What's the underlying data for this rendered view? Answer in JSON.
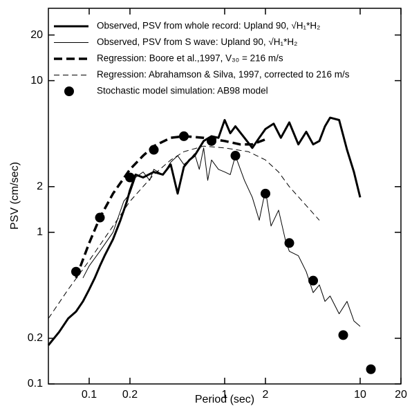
{
  "chart_data": {
    "type": "line",
    "xlabel": "Period (sec)",
    "ylabel": "PSV (cm/sec)",
    "log_x": true,
    "log_y": true,
    "xlim": [
      0.05,
      20
    ],
    "ylim": [
      0.1,
      30
    ],
    "xticks": [
      0.1,
      0.2,
      1,
      2,
      10,
      20
    ],
    "yticks": [
      0.1,
      0.2,
      1,
      2,
      10,
      20
    ],
    "legend": "upper left",
    "series": [
      {
        "name": "Observed, PSV from whole record: Upland 90, √H₁*H₂",
        "color": "#000000",
        "style": "solid",
        "width": 3,
        "x": [
          0.05,
          0.06,
          0.07,
          0.08,
          0.09,
          0.1,
          0.11,
          0.12,
          0.13,
          0.15,
          0.17,
          0.19,
          0.2,
          0.22,
          0.25,
          0.3,
          0.35,
          0.4,
          0.45,
          0.5,
          0.55,
          0.6,
          0.7,
          0.8,
          0.9,
          1.0,
          1.1,
          1.2,
          1.4,
          1.6,
          1.8,
          2.0,
          2.3,
          2.6,
          3.0,
          3.5,
          4.0,
          4.5,
          5.0,
          5.5,
          6.0,
          7.0,
          8.0,
          9.0,
          10
        ],
        "values": [
          0.18,
          0.22,
          0.27,
          0.3,
          0.35,
          0.42,
          0.5,
          0.6,
          0.7,
          0.9,
          1.2,
          1.6,
          1.9,
          2.4,
          2.3,
          2.5,
          2.4,
          2.8,
          1.8,
          2.7,
          3.0,
          3.2,
          4.0,
          4.3,
          4.2,
          5.5,
          4.5,
          5.0,
          4.2,
          3.6,
          4.2,
          4.8,
          5.2,
          4.2,
          5.3,
          3.8,
          4.6,
          3.8,
          4.0,
          5.0,
          5.7,
          5.5,
          3.5,
          2.5,
          1.7
        ]
      },
      {
        "name": "Observed, PSV from S wave: Upland 90, √H₁*H₂",
        "color": "#000000",
        "style": "solid",
        "width": 1,
        "x": [
          0.09,
          0.1,
          0.12,
          0.15,
          0.18,
          0.2,
          0.22,
          0.25,
          0.28,
          0.3,
          0.35,
          0.4,
          0.45,
          0.5,
          0.55,
          0.6,
          0.65,
          0.7,
          0.75,
          0.8,
          0.9,
          1.0,
          1.1,
          1.2,
          1.4,
          1.6,
          1.8,
          2.0,
          2.2,
          2.5,
          2.8,
          3.0,
          3.5,
          4.0,
          4.5,
          5.0,
          5.5,
          6.0,
          7.0,
          8.0,
          9.0,
          10
        ],
        "values": [
          0.5,
          0.6,
          0.75,
          1.0,
          1.6,
          1.8,
          2.3,
          2.5,
          2.2,
          2.6,
          2.4,
          2.9,
          3.2,
          2.8,
          3.0,
          3.3,
          2.6,
          3.6,
          2.2,
          3.0,
          2.6,
          2.5,
          2.4,
          3.2,
          2.2,
          1.7,
          1.2,
          1.9,
          1.1,
          1.4,
          0.9,
          0.75,
          0.7,
          0.55,
          0.4,
          0.45,
          0.35,
          0.38,
          0.29,
          0.35,
          0.26,
          0.24
        ]
      },
      {
        "name": "Regression: Boore et al.,1997, V₃₀ = 216 m/s",
        "color": "#000000",
        "style": "dashed",
        "width": 3.5,
        "x": [
          0.08,
          0.1,
          0.12,
          0.15,
          0.2,
          0.25,
          0.3,
          0.4,
          0.5,
          0.7,
          1.0,
          1.3,
          1.6,
          2.0
        ],
        "values": [
          0.5,
          0.85,
          1.25,
          1.8,
          2.6,
          3.2,
          3.7,
          4.2,
          4.3,
          4.2,
          4.0,
          3.8,
          3.8,
          4.1
        ]
      },
      {
        "name": "Regression: Abrahamson & Silva, 1997, corrected to 216 m/s",
        "color": "#000000",
        "style": "dashed",
        "width": 1,
        "x": [
          0.05,
          0.07,
          0.1,
          0.15,
          0.2,
          0.3,
          0.4,
          0.5,
          0.7,
          1.0,
          1.5,
          2.0,
          2.5,
          3.0,
          4.0,
          5.0
        ],
        "values": [
          0.27,
          0.42,
          0.65,
          1.1,
          1.6,
          2.4,
          3.0,
          3.4,
          3.7,
          3.6,
          3.4,
          3.0,
          2.5,
          2.0,
          1.5,
          1.2
        ]
      },
      {
        "name": "Stochastic model simulation: AB98 model",
        "color": "#000000",
        "style": "dots",
        "x": [
          0.08,
          0.12,
          0.2,
          0.3,
          0.5,
          0.8,
          1.2,
          2.0,
          3.0,
          4.5,
          7.5,
          12
        ],
        "values": [
          0.55,
          1.25,
          2.3,
          3.5,
          4.3,
          4.0,
          3.2,
          1.8,
          0.85,
          0.48,
          0.21,
          0.125
        ]
      }
    ]
  }
}
